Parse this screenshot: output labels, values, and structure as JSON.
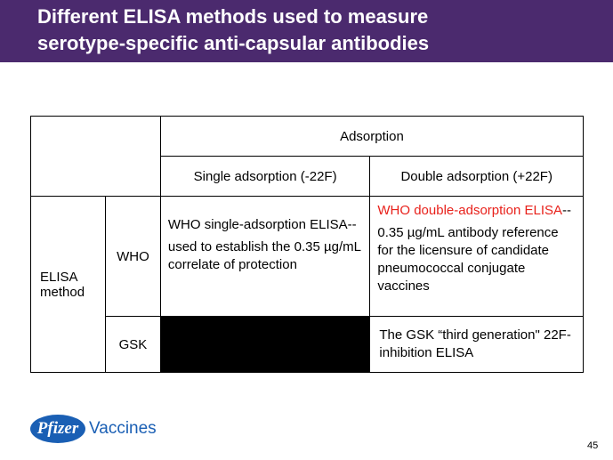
{
  "slide": {
    "title_line1": "Different ELISA methods used to measure",
    "title_line2": "serotype-specific anti-capsular antibodies",
    "page_number": "45"
  },
  "table": {
    "adsorption_header": "Adsorption",
    "single_header": "Single adsorption (-22F)",
    "double_header": "Double adsorption (+22F)",
    "row_group_label": "ELISA method",
    "who_label": "WHO",
    "gsk_label": "GSK",
    "who_single_title": "WHO single-adsorption ELISA--",
    "who_single_desc": "used to establish the 0.35 µg/mL correlate of protection",
    "who_double_title": "WHO double-adsorption ELISA",
    "who_double_dashes": "--",
    "who_double_desc": "0.35 µg/mL antibody reference for the licensure of candidate pneumococcal conjugate vaccines",
    "gsk_double": "The GSK “third generation\" 22F-inhibition ELISA"
  },
  "footer": {
    "logo_text": "Pfizer",
    "logo_suffix": "Vaccines"
  },
  "colors": {
    "title_bar": "#4b2a6e",
    "highlight_red": "#e8211b",
    "brand_blue": "#1a5fb4"
  }
}
